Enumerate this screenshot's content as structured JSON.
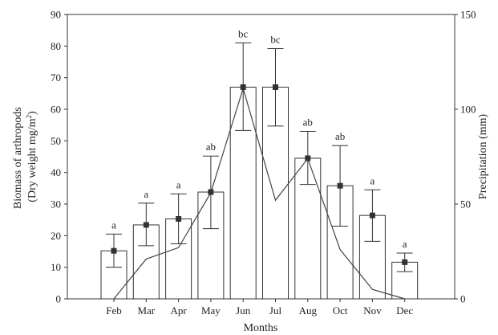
{
  "chart_data": {
    "type": "bar",
    "categories": [
      "Feb",
      "Mar",
      "Apr",
      "May",
      "Jun",
      "Jul",
      "Aug",
      "Oct",
      "Nov",
      "Dec"
    ],
    "series": [
      {
        "name": "",
        "type": "bar",
        "axis": "left",
        "values": [
          15.2,
          23.4,
          25.3,
          33.8,
          67,
          67,
          44.5,
          35.8,
          26.4,
          11.6
        ],
        "error_upper": [
          20.5,
          30.3,
          33.2,
          45.2,
          81,
          79.2,
          53,
          48.5,
          34.5,
          14.5
        ],
        "error_lower": [
          10,
          16.8,
          17.4,
          22.2,
          53.3,
          54.7,
          36.2,
          23,
          18.2,
          8.6
        ],
        "significance": [
          "a",
          "a",
          "a",
          "ab",
          "bc",
          "bc",
          "ab",
          "ab",
          "a",
          "a"
        ]
      },
      {
        "name": "",
        "type": "line",
        "axis": "right",
        "values": [
          0,
          21,
          27,
          56,
          111,
          52,
          74,
          26,
          5,
          0
        ]
      }
    ],
    "title": "",
    "xlabel": "Months",
    "ylabel": [
      "Biomass of arthropods",
      "(Dry weight mg/m",
      "2",
      ")"
    ],
    "y2label": "Precipitation (mm)",
    "ylim": [
      0,
      90
    ],
    "y2lim": [
      0,
      150
    ],
    "yticks": [
      0,
      10,
      20,
      30,
      40,
      50,
      60,
      70,
      80,
      90
    ],
    "y2ticks": [
      0,
      50,
      100,
      150
    ],
    "grid": false,
    "legend": "none"
  }
}
